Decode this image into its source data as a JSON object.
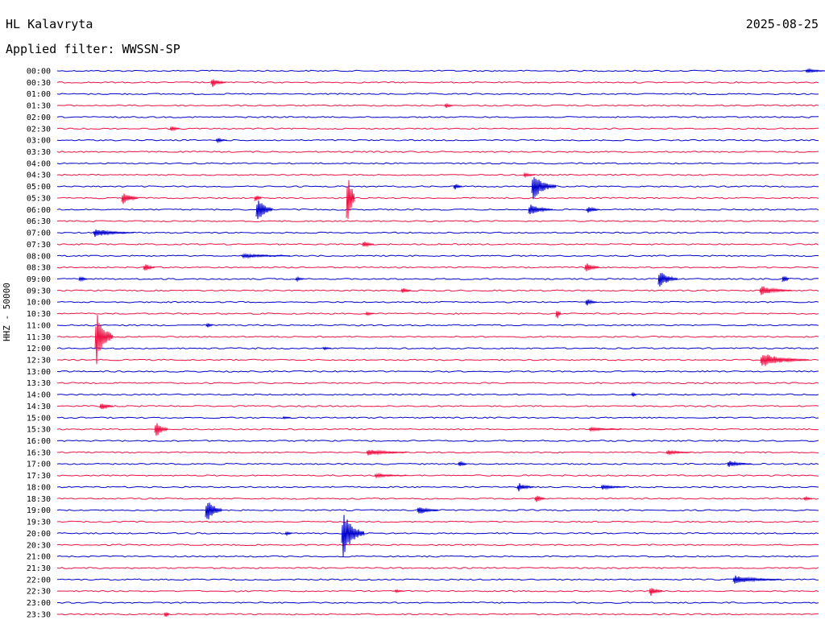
{
  "header": {
    "station": "HL Kalavryta",
    "date": "2025-08-25",
    "filter": "Applied filter: WWSSN-SP"
  },
  "chart_data": {
    "type": "line",
    "ylabel": "HHZ - 50000",
    "row_labels": [
      "00:00",
      "00:30",
      "01:00",
      "01:30",
      "02:00",
      "02:30",
      "03:00",
      "03:30",
      "04:00",
      "04:30",
      "05:00",
      "05:30",
      "06:00",
      "06:30",
      "07:00",
      "07:30",
      "08:00",
      "08:30",
      "09:00",
      "09:30",
      "10:00",
      "10:30",
      "11:00",
      "11:30",
      "12:00",
      "12:30",
      "13:00",
      "13:30",
      "14:00",
      "14:30",
      "15:00",
      "15:30",
      "16:00",
      "16:30",
      "17:00",
      "17:30",
      "18:00",
      "18:30",
      "19:00",
      "19:30",
      "20:00",
      "20:30",
      "21:00",
      "21:30",
      "22:00",
      "22:30",
      "23:00",
      "23:30"
    ],
    "colors": [
      "#0000cc",
      "#ee1144"
    ],
    "grid": false,
    "legend": "none"
  }
}
